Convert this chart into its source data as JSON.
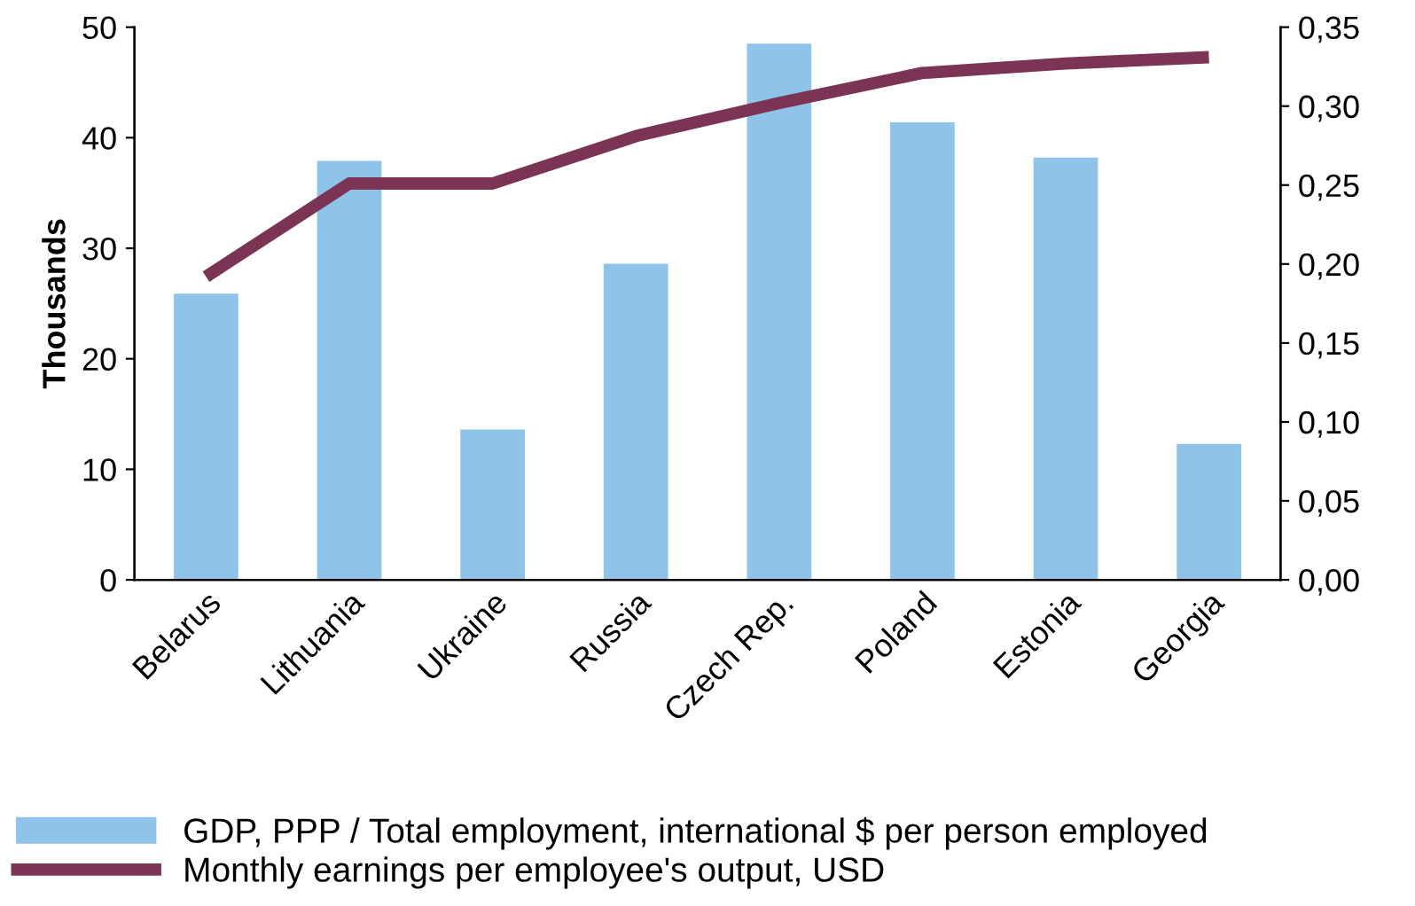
{
  "chart_data": {
    "type": "bar",
    "ylabel": "Thousands",
    "categories": [
      "Belarus",
      "Lithuania",
      "Ukraine",
      "Russia",
      "Czech Rep.",
      "Poland",
      "Estonia",
      "Georgia"
    ],
    "series": [
      {
        "name": "GDP, PPP / Total employment, international $ per person employed",
        "color": "#8ec4ea",
        "values": [
          25.9,
          37.9,
          13.6,
          28.6,
          48.5,
          41.4,
          38.2,
          12.3
        ]
      },
      {
        "name": "Monthly earnings per employee's output, USD",
        "type": "line",
        "axis": "y2",
        "color": "#7b3454",
        "values": [
          0.192,
          0.251,
          0.251,
          0.281,
          0.302,
          0.321,
          0.327,
          0.331
        ]
      }
    ],
    "ylim": [
      0,
      50
    ],
    "yticks": [
      0,
      10,
      20,
      30,
      40,
      50
    ],
    "y2lim": [
      0,
      0.35
    ],
    "y2ticks": [
      {
        "value": 0,
        "label": "0,00"
      },
      {
        "value": 0.05,
        "label": "0,05"
      },
      {
        "value": 0.1,
        "label": "0,10"
      },
      {
        "value": 0.15,
        "label": "0,15"
      },
      {
        "value": 0.2,
        "label": "0,20"
      },
      {
        "value": 0.25,
        "label": "0,25"
      },
      {
        "value": 0.3,
        "label": "0,30"
      },
      {
        "value": 0.35,
        "label": "0,35"
      }
    ],
    "grid": false,
    "legend": "bottom"
  }
}
